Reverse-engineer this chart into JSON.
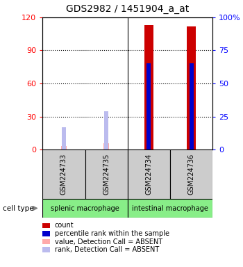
{
  "title": "GDS2982 / 1451904_a_at",
  "samples": [
    "GSM224733",
    "GSM224735",
    "GSM224734",
    "GSM224736"
  ],
  "count_values": [
    null,
    null,
    113,
    112
  ],
  "count_values_absent": [
    3,
    6,
    null,
    null
  ],
  "percentile_values": [
    null,
    null,
    65,
    65
  ],
  "rank_absent": [
    17,
    29,
    null,
    null
  ],
  "ylim_left": [
    0,
    120
  ],
  "ylim_right": [
    0,
    100
  ],
  "yticks_left": [
    0,
    30,
    60,
    90,
    120
  ],
  "yticks_right": [
    0,
    25,
    50,
    75,
    100
  ],
  "ytick_labels_left": [
    "0",
    "30",
    "60",
    "90",
    "120"
  ],
  "ytick_labels_right": [
    "0",
    "25",
    "50",
    "75",
    "100%"
  ],
  "count_color": "#cc0000",
  "percentile_color": "#0000cc",
  "count_absent_color": "#ffaaaa",
  "rank_absent_color": "#bbbbee",
  "cell_type_bg_color": "#88ee88",
  "sample_box_bg_color": "#cccccc",
  "title_fontsize": 10,
  "tick_fontsize": 8,
  "cell_type_labels": [
    "splenic macrophage",
    "intestinal macrophage"
  ],
  "legend_items": [
    [
      "#cc0000",
      "count"
    ],
    [
      "#0000cc",
      "percentile rank within the sample"
    ],
    [
      "#ffaaaa",
      "value, Detection Call = ABSENT"
    ],
    [
      "#bbbbee",
      "rank, Detection Call = ABSENT"
    ]
  ]
}
